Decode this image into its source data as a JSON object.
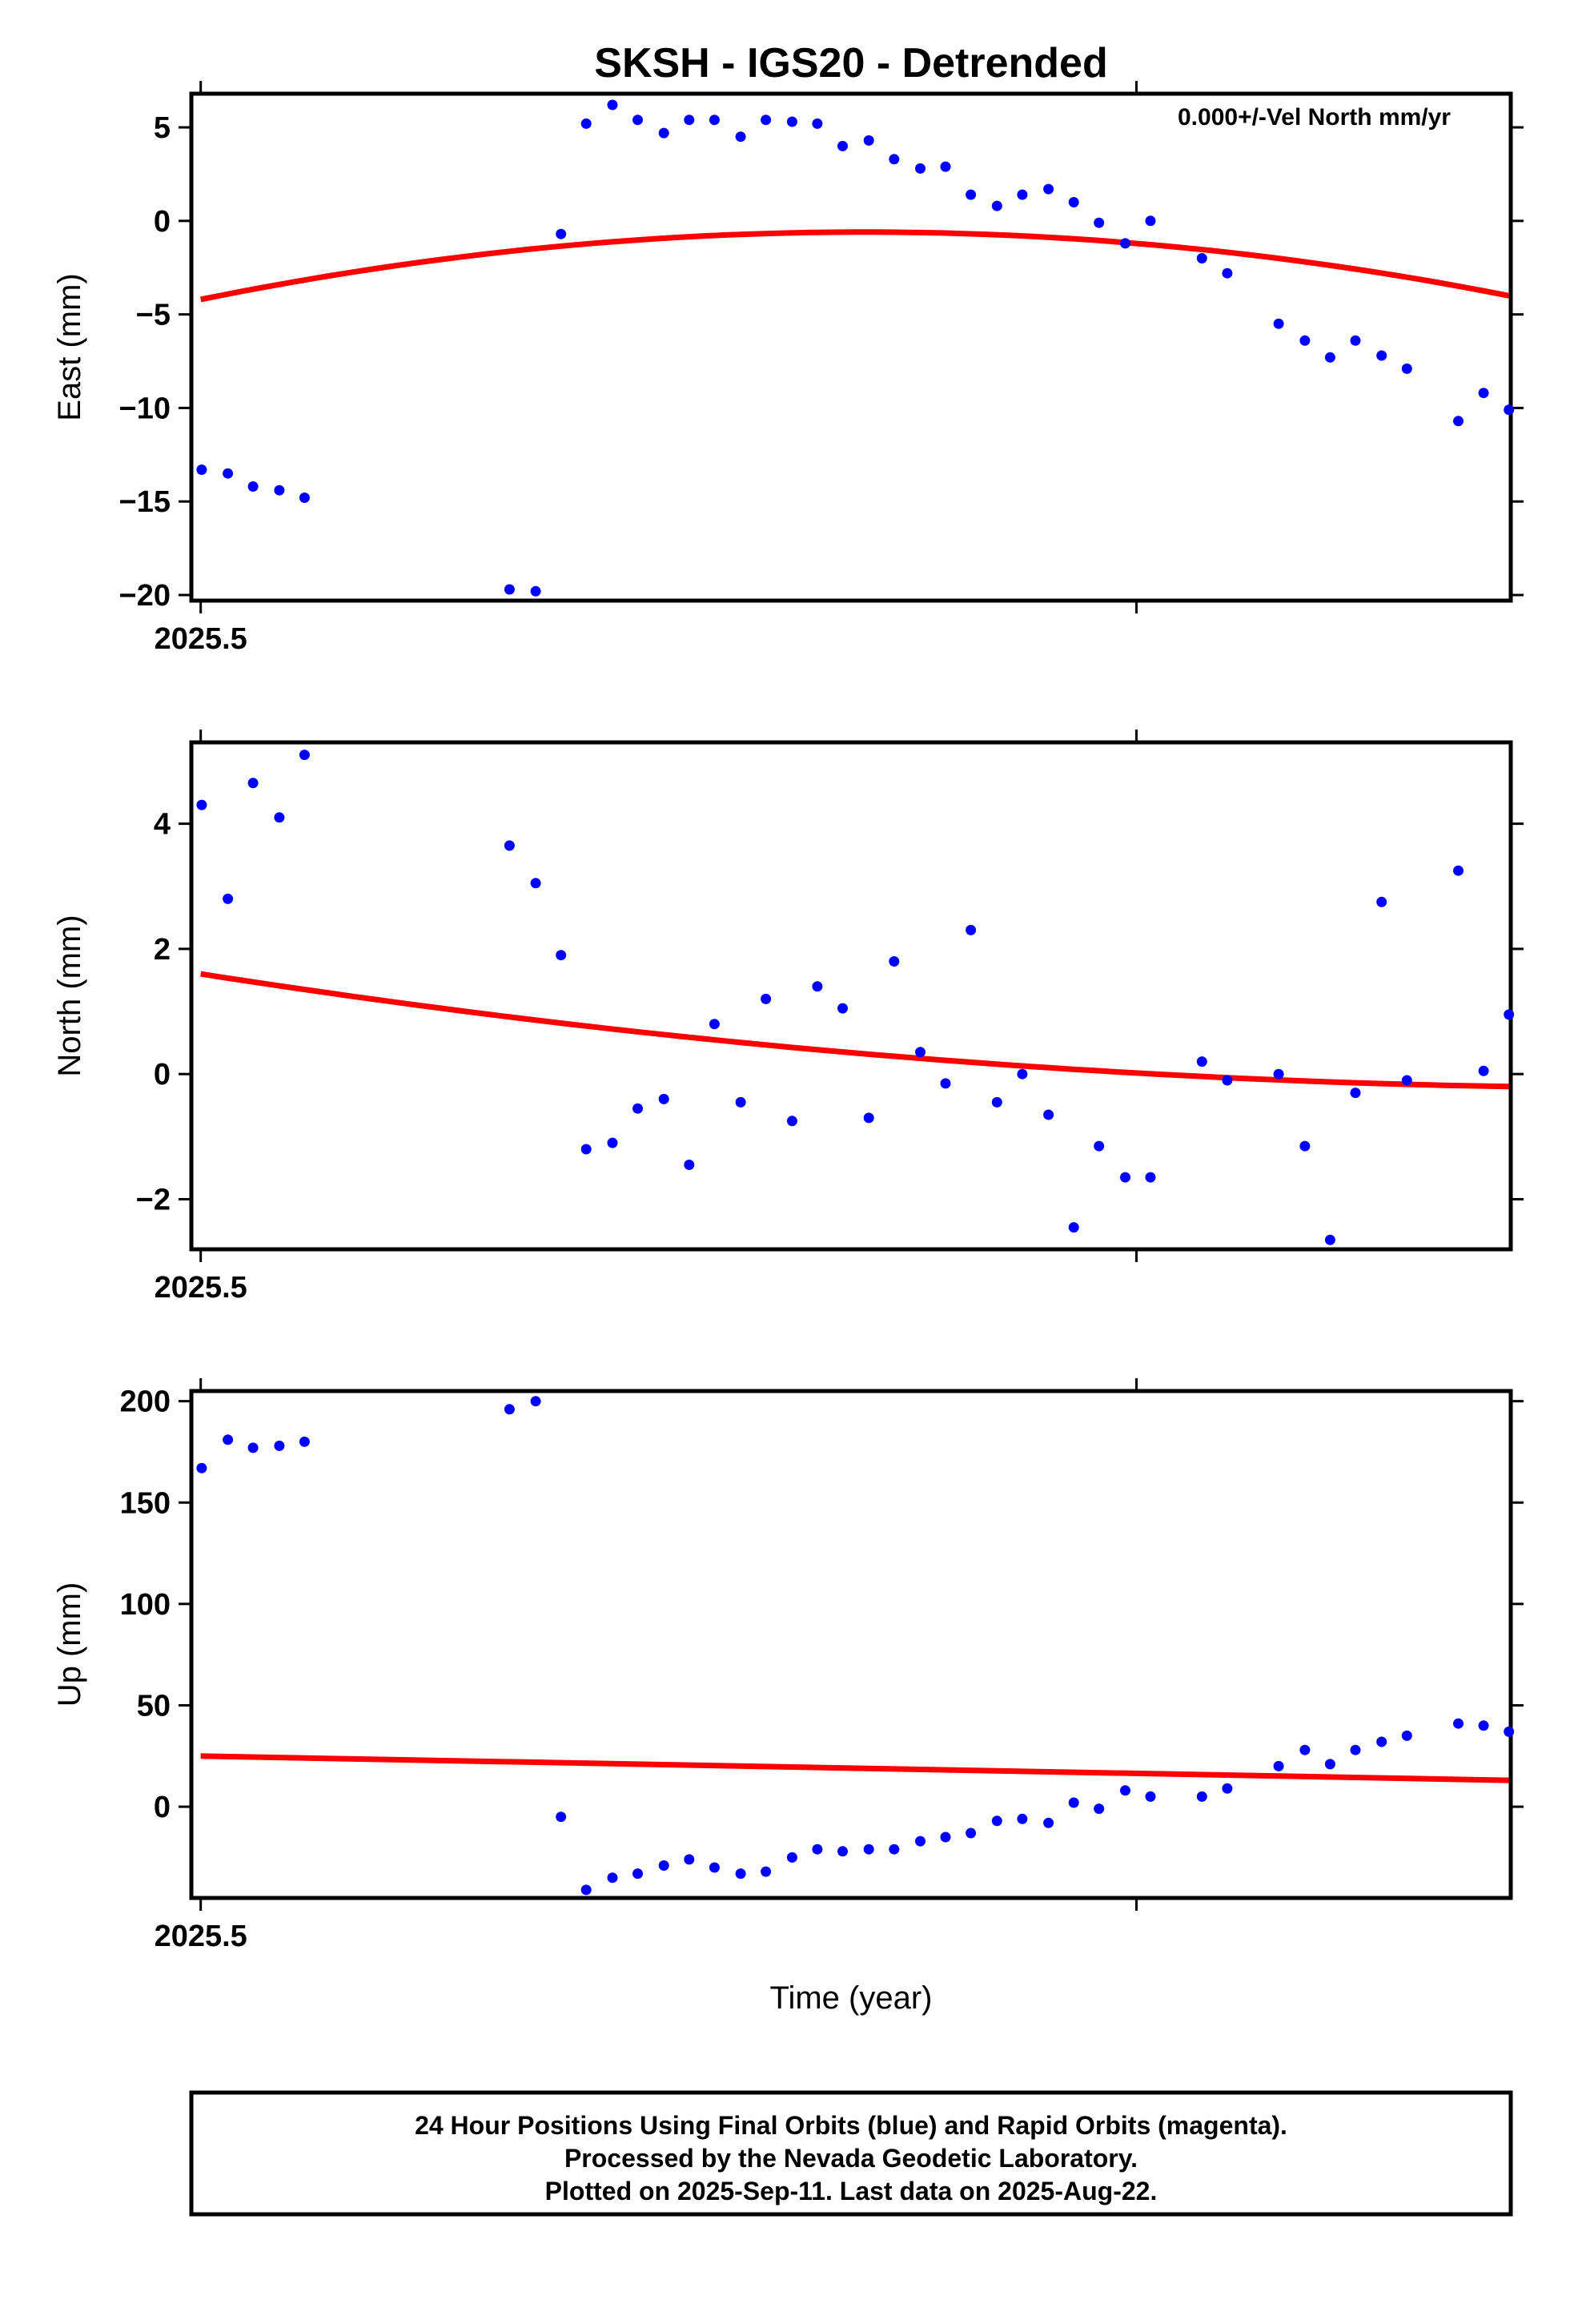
{
  "title": "SKSH - IGS20 - Detrended",
  "xlabel": "Time (year)",
  "annotation": "0.000+/-Vel North mm/yr",
  "footer": {
    "line1": "24 Hour Positions Using Final Orbits (blue) and Rapid Orbits (magenta).",
    "line2": "Processed by the Nevada Geodetic Laboratory.",
    "line3": "Plotted on 2025-Sep-11. Last data on 2025-Aug-22."
  },
  "colors": {
    "points": "#0000ff",
    "fit": "#ff0000",
    "axes": "#000000"
  },
  "chart_data": [
    {
      "type": "scatter",
      "ylabel": "East (mm)",
      "xlim": [
        2025.499,
        2025.64
      ],
      "ylim": [
        -20.3,
        6.8
      ],
      "xtick_label": "2025.5",
      "xtick_label_value": 2025.5,
      "xtick_marks": [
        2025.5,
        2025.6
      ],
      "yticks": [
        5,
        0,
        -5,
        -10,
        -15,
        -20
      ],
      "ytick_labels": [
        "5",
        "0",
        "−5",
        "−10",
        "−15",
        "−20"
      ],
      "fit": {
        "x": [
          2025.5,
          2025.5728,
          2025.6398
        ],
        "y": [
          -4.2,
          -0.6,
          -4.0
        ]
      },
      "x": [
        2025.5001,
        2025.5029,
        2025.5056,
        2025.5084,
        2025.5111,
        2025.533,
        2025.5358,
        2025.5385,
        2025.5412,
        2025.544,
        2025.5467,
        2025.5495,
        2025.5522,
        2025.5549,
        2025.5577,
        2025.5604,
        2025.5632,
        2025.5659,
        2025.5686,
        2025.5714,
        2025.5741,
        2025.5769,
        2025.5796,
        2025.5823,
        2025.5851,
        2025.5878,
        2025.5906,
        2025.5933,
        2025.596,
        2025.5988,
        2025.6015,
        2025.607,
        2025.6097,
        2025.6152,
        2025.618,
        2025.6207,
        2025.6234,
        2025.6262,
        2025.6289,
        2025.6344,
        2025.6371,
        2025.6398
      ],
      "y": [
        -13.3,
        -13.5,
        -14.2,
        -14.4,
        -14.8,
        -19.7,
        -19.8,
        -0.7,
        5.2,
        6.2,
        5.4,
        4.7,
        5.4,
        5.4,
        4.5,
        5.4,
        5.3,
        5.2,
        4.0,
        4.3,
        3.3,
        2.8,
        2.9,
        1.4,
        0.8,
        1.4,
        1.7,
        1.0,
        -0.1,
        -1.2,
        0.0,
        -2.0,
        -2.8,
        -5.5,
        -6.4,
        -7.3,
        -6.4,
        -7.2,
        -7.9,
        -10.7,
        -9.2,
        -10.1
      ]
    },
    {
      "type": "scatter",
      "ylabel": "North (mm)",
      "xlim": [
        2025.499,
        2025.64
      ],
      "ylim": [
        -2.8,
        5.3
      ],
      "xtick_label": "2025.5",
      "xtick_label_value": 2025.5,
      "xtick_marks": [
        2025.5,
        2025.6
      ],
      "yticks": [
        4,
        2,
        0,
        -2
      ],
      "ytick_labels": [
        "4",
        "2",
        "0",
        "−2"
      ],
      "fit": {
        "x": [
          2025.5,
          2025.5728,
          2025.6398
        ],
        "y": [
          1.6,
          0.3,
          -0.2
        ]
      },
      "x": [
        2025.5001,
        2025.5029,
        2025.5056,
        2025.5084,
        2025.5111,
        2025.533,
        2025.5358,
        2025.5385,
        2025.5412,
        2025.544,
        2025.5467,
        2025.5495,
        2025.5522,
        2025.5549,
        2025.5577,
        2025.5604,
        2025.5632,
        2025.5659,
        2025.5686,
        2025.5714,
        2025.5741,
        2025.5769,
        2025.5796,
        2025.5823,
        2025.5851,
        2025.5878,
        2025.5906,
        2025.5933,
        2025.596,
        2025.5988,
        2025.6015,
        2025.607,
        2025.6097,
        2025.6152,
        2025.618,
        2025.6207,
        2025.6234,
        2025.6262,
        2025.6289,
        2025.6344,
        2025.6371,
        2025.6398
      ],
      "y": [
        4.3,
        2.8,
        4.65,
        4.1,
        5.1,
        3.65,
        3.05,
        1.9,
        -1.2,
        -1.1,
        -0.55,
        -0.4,
        -1.45,
        0.8,
        -0.45,
        1.2,
        -0.75,
        1.4,
        1.05,
        -0.7,
        1.8,
        0.35,
        -0.15,
        2.3,
        -0.45,
        0.0,
        -0.65,
        -2.45,
        -1.15,
        -1.65,
        -1.65,
        0.2,
        -0.1,
        0.0,
        -1.15,
        -2.65,
        -0.3,
        2.75,
        -0.1,
        3.25,
        0.05,
        0.95
      ]
    },
    {
      "type": "scatter",
      "ylabel": "Up (mm)",
      "xlim": [
        2025.499,
        2025.64
      ],
      "ylim": [
        -45,
        205
      ],
      "xtick_label": "2025.5",
      "xtick_label_value": 2025.5,
      "xtick_marks": [
        2025.5,
        2025.6
      ],
      "yticks": [
        200,
        150,
        100,
        50,
        0
      ],
      "ytick_labels": [
        "200",
        "150",
        "100",
        "50",
        "0"
      ],
      "fit": {
        "x": [
          2025.5,
          2025.6398
        ],
        "y": [
          25,
          13
        ]
      },
      "x": [
        2025.5001,
        2025.5029,
        2025.5056,
        2025.5084,
        2025.5111,
        2025.533,
        2025.5358,
        2025.5385,
        2025.5412,
        2025.544,
        2025.5467,
        2025.5495,
        2025.5522,
        2025.5549,
        2025.5577,
        2025.5604,
        2025.5632,
        2025.5659,
        2025.5686,
        2025.5714,
        2025.5741,
        2025.5769,
        2025.5796,
        2025.5823,
        2025.5851,
        2025.5878,
        2025.5906,
        2025.5933,
        2025.596,
        2025.5988,
        2025.6015,
        2025.607,
        2025.6097,
        2025.6152,
        2025.618,
        2025.6207,
        2025.6234,
        2025.6262,
        2025.6289,
        2025.6344,
        2025.6371,
        2025.6398
      ],
      "y": [
        167,
        181,
        177,
        178,
        180,
        196,
        200,
        -5,
        -41,
        -35,
        -33,
        -29,
        -26,
        -30,
        -33,
        -32,
        -25,
        -21,
        -22,
        -21,
        -21,
        -17,
        -15,
        -13,
        -7,
        -6,
        -8,
        2,
        -1,
        8,
        5,
        5,
        9,
        20,
        28,
        21,
        28,
        32,
        35,
        41,
        40,
        37
      ]
    }
  ]
}
